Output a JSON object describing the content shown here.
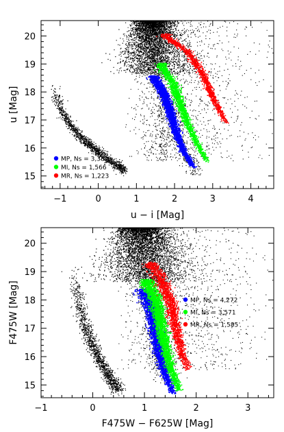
{
  "chart_data": [
    {
      "type": "scatter",
      "xlabel": "u − i [Mag]",
      "ylabel": "u [Mag]",
      "xlim": [
        -1.5,
        4.6
      ],
      "ylim": [
        20.55,
        14.55
      ],
      "y_inverted": true,
      "xticks": [
        -1,
        0,
        1,
        2,
        3,
        4
      ],
      "xtick_labels": [
        "−1",
        "0",
        "1",
        "2",
        "3",
        "4"
      ],
      "yticks": [
        15,
        16,
        17,
        18,
        19,
        20
      ],
      "ytick_labels": [
        "15",
        "16",
        "17",
        "18",
        "19",
        "20"
      ],
      "legend_position": "bottom-left",
      "series": [
        {
          "name": "MP, Ns = 3,382",
          "color": "#0000ff",
          "count": 3382,
          "ridge": [
            [
              1.45,
              18.5
            ],
            [
              1.68,
              18.05
            ],
            [
              1.88,
              17.3
            ],
            [
              2.02,
              16.6
            ],
            [
              2.2,
              15.95
            ],
            [
              2.5,
              15.3
            ]
          ],
          "mag_range": [
            15.3,
            18.6
          ]
        },
        {
          "name": "MI, Ns = 1,566",
          "color": "#00ff00",
          "count": 1566,
          "ridge": [
            [
              1.65,
              18.9
            ],
            [
              1.95,
              18.35
            ],
            [
              2.15,
              17.55
            ],
            [
              2.35,
              16.8
            ],
            [
              2.6,
              16.1
            ],
            [
              2.85,
              15.55
            ]
          ],
          "mag_range": [
            15.5,
            19.05
          ]
        },
        {
          "name": "MR, Ns = 1,223",
          "color": "#ff0000",
          "count": 1223,
          "ridge": [
            [
              1.75,
              20.0
            ],
            [
              2.3,
              19.5
            ],
            [
              2.75,
              18.6
            ],
            [
              3.0,
              17.8
            ],
            [
              3.2,
              17.3
            ],
            [
              3.35,
              16.9
            ]
          ],
          "mag_range": [
            16.9,
            20.1
          ]
        }
      ]
    },
    {
      "type": "scatter",
      "xlabel": "F475W − F625W [Mag]",
      "ylabel": "F475W [Mag]",
      "xlim": [
        -1.0,
        3.5
      ],
      "ylim": [
        20.55,
        14.55
      ],
      "y_inverted": true,
      "xticks": [
        -1,
        0,
        1,
        2,
        3
      ],
      "xtick_labels": [
        "−1",
        "0",
        "1",
        "2",
        "3"
      ],
      "yticks": [
        15,
        16,
        17,
        18,
        19,
        20
      ],
      "ytick_labels": [
        "15",
        "16",
        "17",
        "18",
        "19",
        "20"
      ],
      "legend_position": "middle-right",
      "series": [
        {
          "name": "MP, Ns = 4,272",
          "color": "#0000ff",
          "count": 4272,
          "ridge": [
            [
              1.0,
              18.25
            ],
            [
              1.13,
              17.7
            ],
            [
              1.2,
              16.9
            ],
            [
              1.28,
              16.1
            ],
            [
              1.4,
              15.35
            ],
            [
              1.55,
              14.7
            ]
          ],
          "mag_range": [
            14.7,
            18.4
          ]
        },
        {
          "name": "MI, Ns = 3,571",
          "color": "#00ff00",
          "count": 3571,
          "ridge": [
            [
              1.05,
              18.6
            ],
            [
              1.2,
              18.1
            ],
            [
              1.3,
              17.2
            ],
            [
              1.38,
              16.4
            ],
            [
              1.5,
              15.6
            ],
            [
              1.65,
              14.85
            ]
          ],
          "mag_range": [
            14.8,
            18.75
          ]
        },
        {
          "name": "MR, Ns = 1,585",
          "color": "#ff0000",
          "count": 1585,
          "ridge": [
            [
              1.12,
              19.25
            ],
            [
              1.33,
              18.7
            ],
            [
              1.5,
              17.9
            ],
            [
              1.6,
              17.0
            ],
            [
              1.7,
              16.2
            ],
            [
              1.83,
              15.6
            ]
          ],
          "mag_range": [
            15.5,
            19.35
          ]
        }
      ]
    }
  ]
}
